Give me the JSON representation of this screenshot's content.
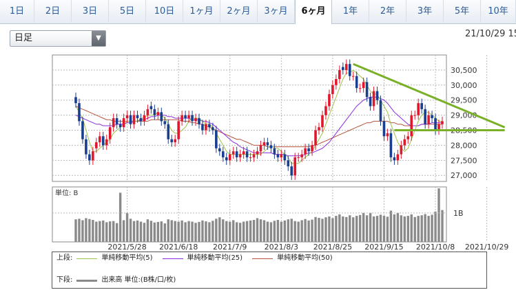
{
  "tabs": [
    "1日",
    "2日",
    "3日",
    "5日",
    "10日",
    "1ヶ月",
    "2ヶ月",
    "3ヶ月",
    "6ヶ月",
    "1年",
    "2年",
    "3年",
    "5年",
    "10年"
  ],
  "active_tab": "6ヶ月",
  "select": {
    "value": "日足"
  },
  "datetime": "21/10/29 15",
  "colors": {
    "up": "#e0182d",
    "down": "#1a3f8f",
    "ma5": "#9bc34a",
    "ma25": "#8a2be2",
    "ma50": "#b5523b",
    "trend": "#7ab028",
    "volume": "#8a8a8a",
    "grid": "#b8b8b8"
  },
  "legend": {
    "upper_label": "上段:",
    "lower_label": "下段:",
    "ma5": "単純移動平均(5)",
    "ma25": "単純移動平均(25)",
    "ma50": "単純移動平均(50)",
    "volume": "出来高 単位:(B株/口/枚)"
  },
  "chart_data": {
    "type": "candlestick",
    "price_axis": {
      "ylim": [
        26800,
        31000
      ],
      "ticks": [
        "30,500",
        "30,000",
        "29,500",
        "29,000",
        "28,500",
        "28,000",
        "27,500",
        "27,000"
      ],
      "tick_values": [
        30500,
        30000,
        29500,
        29000,
        28500,
        28000,
        27500,
        27000
      ]
    },
    "x_ticks": [
      "2021/5/28",
      "2021/6/18",
      "2021/7/9",
      "2021/8/3",
      "2021/8/25",
      "2021/9/15",
      "2021/10/8",
      "2021/10/29"
    ],
    "x_tick_index": [
      15,
      30,
      45,
      60,
      75,
      90,
      105,
      120
    ],
    "close": [
      29400,
      28800,
      28200,
      27700,
      27500,
      27800,
      28100,
      28300,
      28000,
      28200,
      28600,
      28900,
      28700,
      28600,
      28900,
      29000,
      28700,
      29000,
      28900,
      28800,
      29000,
      29200,
      29200,
      29000,
      29100,
      28800,
      28700,
      28200,
      28100,
      28200,
      28800,
      29000,
      28900,
      29000,
      28800,
      28900,
      28700,
      28500,
      28700,
      28600,
      28500,
      27900,
      27800,
      27600,
      27500,
      27700,
      27800,
      27600,
      27700,
      27800,
      27600,
      27600,
      27700,
      27800,
      28000,
      28100,
      28000,
      27900,
      27700,
      27600,
      27700,
      27500,
      27300,
      27000,
      27600,
      27600,
      27700,
      27900,
      27800,
      28000,
      28500,
      28600,
      29000,
      29300,
      29700,
      30000,
      30200,
      30500,
      30500,
      30700,
      30300,
      30300,
      29900,
      29900,
      30100,
      29600,
      29300,
      29800,
      29500,
      28800,
      28300,
      28400,
      27600,
      27500,
      27700,
      28000,
      28200,
      28300,
      29000,
      29000,
      29400,
      29200,
      28700,
      29000,
      28900,
      28500,
      28700,
      28800
    ],
    "open": [
      29600,
      29400,
      28800,
      28200,
      27700,
      27500,
      27900,
      28100,
      28300,
      28000,
      28200,
      28600,
      28900,
      28700,
      28600,
      28900,
      29000,
      28700,
      29000,
      28900,
      28800,
      29000,
      29300,
      29200,
      29000,
      29100,
      28800,
      28700,
      28200,
      28100,
      28200,
      28800,
      29000,
      28900,
      29000,
      28800,
      28900,
      28700,
      28500,
      28700,
      28600,
      28500,
      27900,
      27800,
      27600,
      27500,
      27700,
      27800,
      27600,
      27700,
      27800,
      27600,
      27600,
      27700,
      27800,
      28000,
      28100,
      28000,
      27900,
      27700,
      27600,
      27700,
      27500,
      27300,
      27000,
      27600,
      27600,
      27700,
      27900,
      27800,
      28000,
      28500,
      28600,
      29000,
      29300,
      29700,
      30000,
      30200,
      30600,
      30500,
      30700,
      30300,
      30300,
      29900,
      29900,
      30100,
      29600,
      29300,
      29800,
      29500,
      28800,
      28300,
      28400,
      27600,
      27500,
      27700,
      28000,
      28200,
      28300,
      29000,
      29000,
      29400,
      29200,
      28700,
      29000,
      28900,
      28500,
      28700
    ],
    "high_low_pad": 150,
    "ma5": [
      29300,
      29100,
      28900,
      28500,
      28100,
      27800,
      27800,
      27900,
      28000,
      28100,
      28200,
      28400,
      28500,
      28600,
      28700,
      28800,
      28800,
      28800,
      28800,
      28900,
      28900,
      29000,
      29000,
      29000,
      29100,
      29000,
      28900,
      28700,
      28500,
      28400,
      28400,
      28500,
      28600,
      28800,
      28900,
      28900,
      28900,
      28800,
      28700,
      28700,
      28600,
      28400,
      28200,
      28000,
      27800,
      27700,
      27700,
      27700,
      27700,
      27700,
      27700,
      27700,
      27700,
      27700,
      27700,
      27800,
      27900,
      28000,
      27900,
      27900,
      27800,
      27700,
      27600,
      27400,
      27400,
      27400,
      27500,
      27600,
      27700,
      27800,
      28000,
      28200,
      28400,
      28700,
      29000,
      29300,
      29600,
      29900,
      30200,
      30400,
      30400,
      30500,
      30400,
      30300,
      30200,
      30000,
      29800,
      29700,
      29700,
      29500,
      29300,
      29100,
      28700,
      28400,
      28100,
      27900,
      27800,
      27900,
      28200,
      28500,
      28800,
      29000,
      29100,
      29100,
      29000,
      28900,
      28800,
      28800
    ],
    "ma25": [
      29000,
      28950,
      28900,
      28850,
      28800,
      28750,
      28700,
      28700,
      28650,
      28650,
      28650,
      28650,
      28700,
      28700,
      28700,
      28750,
      28750,
      28800,
      28800,
      28850,
      28850,
      28900,
      28950,
      28950,
      29000,
      29000,
      29000,
      28950,
      28950,
      28900,
      28900,
      28900,
      28900,
      28900,
      28850,
      28850,
      28850,
      28800,
      28800,
      28750,
      28700,
      28600,
      28500,
      28400,
      28300,
      28200,
      28100,
      28050,
      27950,
      27900,
      27850,
      27800,
      27750,
      27750,
      27750,
      27750,
      27750,
      27750,
      27700,
      27700,
      27700,
      27700,
      27650,
      27650,
      27650,
      27650,
      27650,
      27700,
      27750,
      27750,
      27800,
      27850,
      27900,
      28000,
      28100,
      28250,
      28400,
      28550,
      28700,
      28850,
      29000,
      29150,
      29300,
      29400,
      29500,
      29550,
      29600,
      29600,
      29600,
      29550,
      29500,
      29400,
      29250,
      29100,
      29000,
      28900,
      28800,
      28700,
      28650,
      28650,
      28650,
      28700,
      28700,
      28700,
      28750,
      28750,
      28750,
      28750
    ],
    "ma50": [
      29300,
      29250,
      29200,
      29150,
      29100,
      29050,
      29000,
      28950,
      28900,
      28850,
      28850,
      28800,
      28800,
      28800,
      28800,
      28800,
      28800,
      28800,
      28800,
      28800,
      28800,
      28800,
      28850,
      28850,
      28850,
      28850,
      28850,
      28850,
      28850,
      28850,
      28850,
      28800,
      28800,
      28800,
      28750,
      28750,
      28700,
      28700,
      28650,
      28600,
      28550,
      28500,
      28450,
      28400,
      28350,
      28300,
      28250,
      28200,
      28200,
      28150,
      28100,
      28050,
      28000,
      28000,
      28000,
      28000,
      27950,
      27950,
      27950,
      27950,
      27950,
      27950,
      27950,
      27950,
      27950,
      27950,
      27950,
      27950,
      27950,
      28000,
      28000,
      28050,
      28100,
      28150,
      28200,
      28250,
      28300,
      28350,
      28400,
      28450,
      28500,
      28550,
      28600,
      28650,
      28700,
      28750,
      28750,
      28800,
      28800,
      28800,
      28800,
      28800,
      28750,
      28750,
      28700,
      28700,
      28650,
      28650,
      28650,
      28650,
      28650,
      28700,
      28700,
      28700,
      28700,
      28700,
      28700,
      28700
    ],
    "volume_axis": {
      "unit_label": "単位: B",
      "tick_label": "1B",
      "tick_value": 1.0,
      "ylim": [
        0,
        1.9
      ]
    },
    "volume": [
      0.78,
      0.8,
      0.75,
      0.82,
      0.79,
      0.76,
      0.7,
      0.72,
      0.74,
      0.68,
      0.71,
      0.72,
      0.65,
      1.7,
      0.75,
      1.0,
      0.8,
      0.72,
      0.74,
      0.7,
      0.66,
      0.78,
      0.73,
      0.67,
      0.69,
      0.71,
      0.64,
      0.78,
      0.75,
      0.72,
      0.7,
      0.74,
      0.68,
      0.72,
      0.7,
      0.66,
      0.69,
      0.74,
      0.71,
      0.68,
      0.73,
      0.8,
      0.85,
      0.78,
      0.72,
      0.7,
      0.75,
      0.68,
      0.66,
      0.7,
      0.72,
      0.74,
      0.76,
      0.82,
      0.78,
      0.75,
      0.7,
      0.68,
      0.73,
      0.76,
      0.7,
      0.74,
      0.78,
      0.8,
      0.72,
      0.7,
      0.75,
      0.79,
      0.74,
      0.77,
      0.86,
      0.83,
      0.8,
      0.85,
      0.88,
      0.82,
      0.9,
      0.95,
      0.88,
      0.86,
      0.92,
      0.85,
      0.9,
      0.93,
      1.0,
      0.92,
      1.0,
      0.88,
      0.9,
      0.94,
      0.9,
      0.87,
      1.08,
      0.95,
      1.0,
      0.92,
      0.88,
      0.9,
      0.95,
      0.86,
      0.9,
      0.92,
      0.96,
      0.9,
      0.94,
      1.05,
      1.85,
      1.1
    ],
    "trendlines": [
      {
        "from": [
          81,
          30700
        ],
        "to": [
          120,
          28780
        ]
      },
      {
        "from": [
          93,
          28500
        ],
        "to": [
          120,
          28500
        ]
      }
    ]
  }
}
